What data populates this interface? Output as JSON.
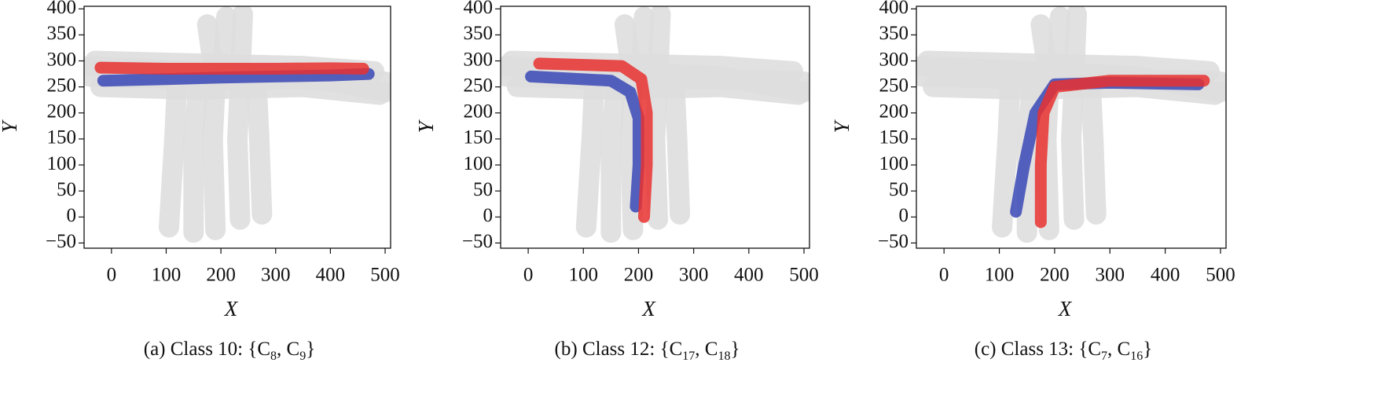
{
  "chart_data": [
    {
      "type": "line",
      "x_label": "X",
      "y_label": "Y",
      "caption": [
        {
          "text": "(a) Class 10: {C"
        },
        {
          "text": "8",
          "sub": true
        },
        {
          "text": ", C"
        },
        {
          "text": "9",
          "sub": true
        },
        {
          "text": "}"
        }
      ],
      "xlim": [
        -50,
        510
      ],
      "ylim": [
        -60,
        405
      ],
      "xticks": [
        0,
        100,
        200,
        300,
        400,
        500
      ],
      "yticks": [
        {
          "value": -50,
          "label": "−50"
        },
        0,
        50,
        100,
        150,
        200,
        250,
        300,
        350,
        400
      ],
      "series": [
        {
          "color": "#dedede",
          "x": [
            -40,
            150,
            350,
            500
          ],
          "y": [
            290,
            280,
            270,
            240
          ]
        },
        {
          "color": "#dedede",
          "x": [
            -40,
            150,
            350,
            500
          ],
          "y": [
            270,
            265,
            265,
            260
          ]
        },
        {
          "color": "#dedede",
          "x": [
            -30,
            150,
            350,
            480
          ],
          "y": [
            300,
            295,
            290,
            280
          ]
        },
        {
          "color": "#dedede",
          "x": [
            -20,
            150,
            350,
            490
          ],
          "y": [
            250,
            245,
            250,
            235
          ]
        },
        {
          "color": "#dedede",
          "x": [
            105,
            115,
            120
          ],
          "y": [
            -20,
            150,
            260
          ]
        },
        {
          "color": "#dedede",
          "x": [
            150,
            150,
            160
          ],
          "y": [
            -30,
            150,
            260
          ]
        },
        {
          "color": "#dedede",
          "x": [
            190,
            185,
            190,
            175
          ],
          "y": [
            -25,
            150,
            260,
            370
          ]
        },
        {
          "color": "#dedede",
          "x": [
            235,
            230,
            235,
            240
          ],
          "y": [
            -5,
            150,
            260,
            390
          ]
        },
        {
          "color": "#dedede",
          "x": [
            275,
            270,
            265
          ],
          "y": [
            5,
            150,
            260
          ]
        },
        {
          "color": "#dedede",
          "x": [
            205,
            210
          ],
          "y": [
            300,
            385
          ]
        },
        {
          "color": "#3a48b5",
          "x": [
            -15,
            100,
            200,
            300,
            400,
            470
          ],
          "y": [
            262,
            265,
            268,
            270,
            272,
            275
          ]
        },
        {
          "color": "#e8302f",
          "x": [
            -20,
            100,
            200,
            300,
            400,
            460
          ],
          "y": [
            287,
            285,
            285,
            285,
            286,
            285
          ]
        }
      ]
    },
    {
      "type": "line",
      "x_label": "X",
      "y_label": "Y",
      "caption": [
        {
          "text": "(b) Class 12: {C"
        },
        {
          "text": "17",
          "sub": true
        },
        {
          "text": ", C"
        },
        {
          "text": "18",
          "sub": true
        },
        {
          "text": "}"
        }
      ],
      "xlim": [
        -50,
        510
      ],
      "ylim": [
        -60,
        405
      ],
      "xticks": [
        0,
        100,
        200,
        300,
        400,
        500
      ],
      "yticks": [
        {
          "value": -50,
          "label": "−50"
        },
        0,
        50,
        100,
        150,
        200,
        250,
        300,
        350,
        400
      ],
      "series": [
        {
          "color": "#dedede",
          "x": [
            -40,
            150,
            350,
            500
          ],
          "y": [
            290,
            280,
            270,
            240
          ]
        },
        {
          "color": "#dedede",
          "x": [
            -40,
            150,
            350,
            500
          ],
          "y": [
            270,
            265,
            265,
            260
          ]
        },
        {
          "color": "#dedede",
          "x": [
            -30,
            150,
            350,
            480
          ],
          "y": [
            300,
            295,
            290,
            280
          ]
        },
        {
          "color": "#dedede",
          "x": [
            -20,
            150,
            350,
            490
          ],
          "y": [
            250,
            245,
            250,
            235
          ]
        },
        {
          "color": "#dedede",
          "x": [
            105,
            115,
            120
          ],
          "y": [
            -20,
            150,
            260
          ]
        },
        {
          "color": "#dedede",
          "x": [
            150,
            150,
            160
          ],
          "y": [
            -30,
            150,
            260
          ]
        },
        {
          "color": "#dedede",
          "x": [
            190,
            185,
            190,
            175
          ],
          "y": [
            -25,
            150,
            260,
            370
          ]
        },
        {
          "color": "#dedede",
          "x": [
            235,
            230,
            235,
            240
          ],
          "y": [
            -5,
            150,
            260,
            390
          ]
        },
        {
          "color": "#dedede",
          "x": [
            275,
            270,
            265
          ],
          "y": [
            5,
            150,
            260
          ]
        },
        {
          "color": "#dedede",
          "x": [
            205,
            210
          ],
          "y": [
            300,
            385
          ]
        },
        {
          "color": "#3a48b5",
          "x": [
            5,
            150,
            185,
            200,
            200,
            195
          ],
          "y": [
            270,
            262,
            240,
            190,
            100,
            20
          ]
        },
        {
          "color": "#e8302f",
          "x": [
            20,
            170,
            205,
            215,
            215,
            210
          ],
          "y": [
            295,
            290,
            265,
            200,
            100,
            0
          ]
        }
      ]
    },
    {
      "type": "line",
      "x_label": "X",
      "y_label": "Y",
      "caption": [
        {
          "text": "(c) Class 13: {C"
        },
        {
          "text": "7",
          "sub": true
        },
        {
          "text": ", C"
        },
        {
          "text": "16",
          "sub": true
        },
        {
          "text": "}"
        }
      ],
      "xlim": [
        -50,
        510
      ],
      "ylim": [
        -60,
        405
      ],
      "xticks": [
        0,
        100,
        200,
        300,
        400,
        500
      ],
      "yticks": [
        {
          "value": -50,
          "label": "−50"
        },
        0,
        50,
        100,
        150,
        200,
        250,
        300,
        350,
        400
      ],
      "series": [
        {
          "color": "#dedede",
          "x": [
            -40,
            150,
            350,
            500
          ],
          "y": [
            290,
            280,
            270,
            240
          ]
        },
        {
          "color": "#dedede",
          "x": [
            -40,
            150,
            350,
            500
          ],
          "y": [
            270,
            265,
            265,
            260
          ]
        },
        {
          "color": "#dedede",
          "x": [
            -30,
            150,
            350,
            480
          ],
          "y": [
            300,
            295,
            290,
            280
          ]
        },
        {
          "color": "#dedede",
          "x": [
            -20,
            150,
            350,
            490
          ],
          "y": [
            250,
            245,
            250,
            235
          ]
        },
        {
          "color": "#dedede",
          "x": [
            105,
            115,
            120
          ],
          "y": [
            -20,
            150,
            260
          ]
        },
        {
          "color": "#dedede",
          "x": [
            150,
            150,
            160
          ],
          "y": [
            -30,
            150,
            260
          ]
        },
        {
          "color": "#dedede",
          "x": [
            190,
            185,
            190,
            175
          ],
          "y": [
            -25,
            150,
            260,
            370
          ]
        },
        {
          "color": "#dedede",
          "x": [
            235,
            230,
            235,
            240
          ],
          "y": [
            -5,
            150,
            260,
            390
          ]
        },
        {
          "color": "#dedede",
          "x": [
            275,
            270,
            265
          ],
          "y": [
            5,
            150,
            260
          ]
        },
        {
          "color": "#dedede",
          "x": [
            205,
            210
          ],
          "y": [
            300,
            385
          ]
        },
        {
          "color": "#3a48b5",
          "x": [
            130,
            145,
            165,
            200,
            300,
            460
          ],
          "y": [
            10,
            100,
            200,
            255,
            258,
            255
          ]
        },
        {
          "color": "#e8302f",
          "x": [
            175,
            175,
            180,
            200,
            300,
            470
          ],
          "y": [
            -10,
            100,
            200,
            250,
            262,
            262
          ]
        }
      ]
    }
  ]
}
